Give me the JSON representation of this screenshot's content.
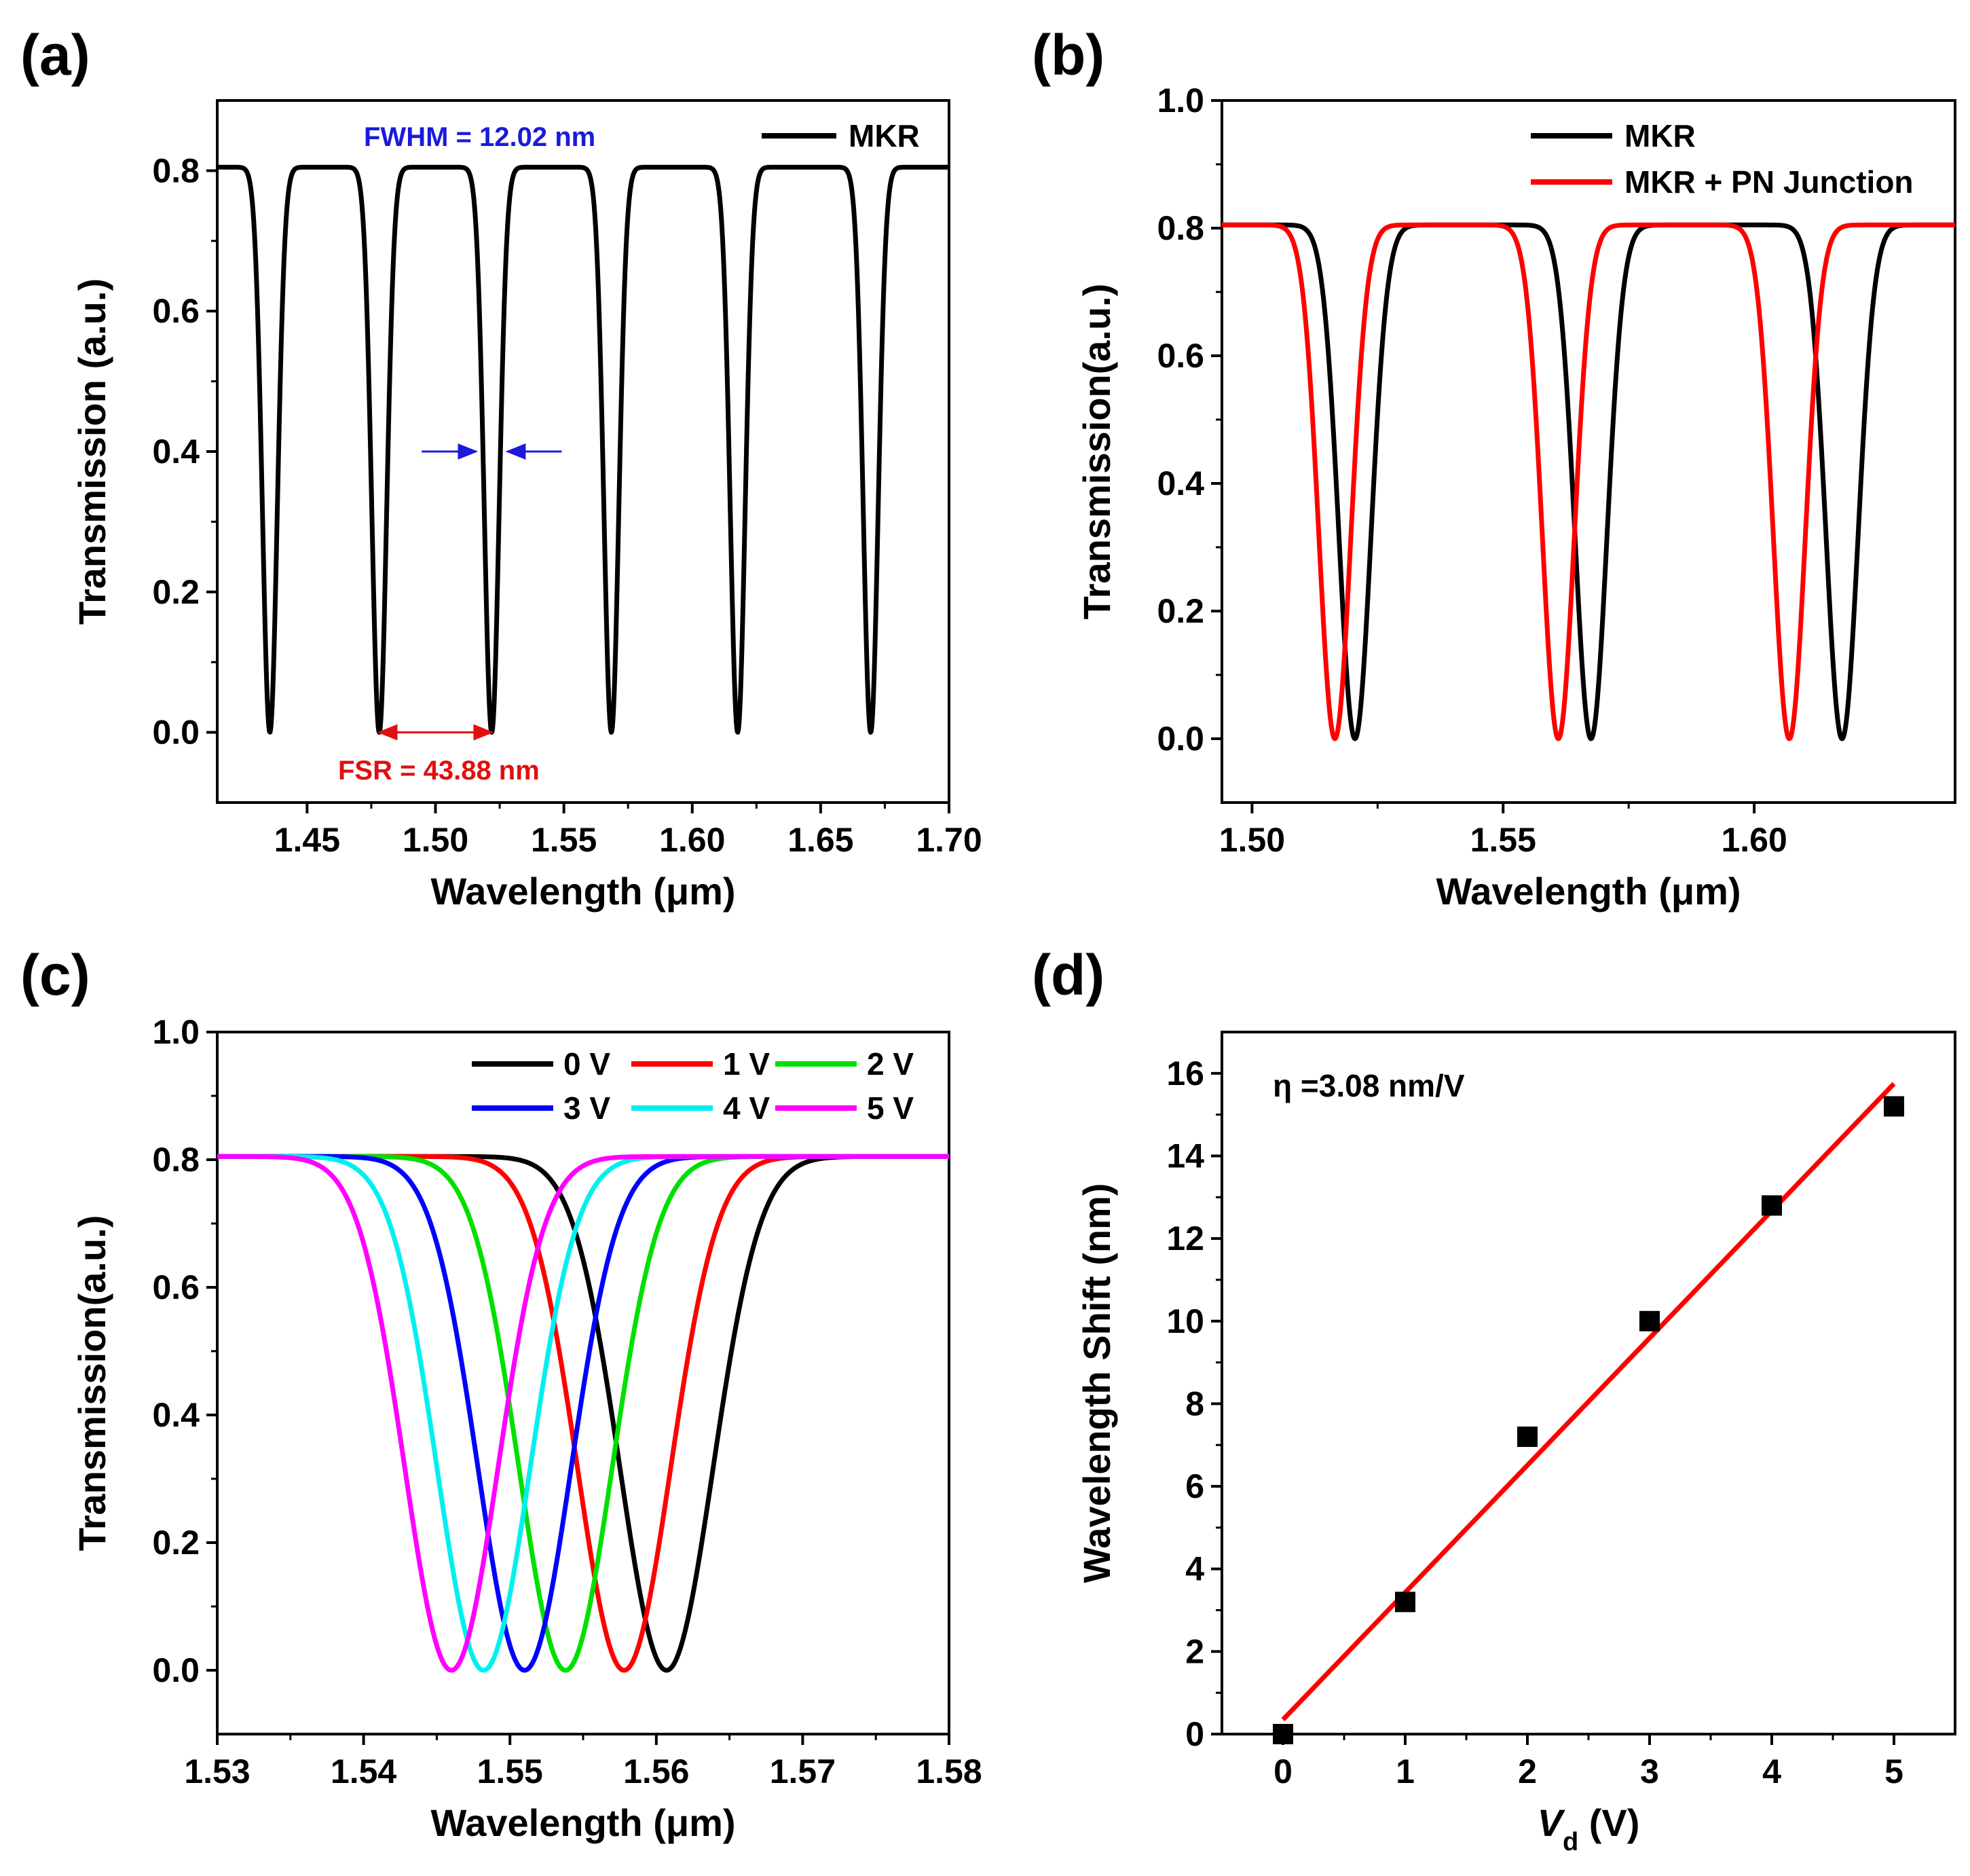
{
  "chart_data": [
    {
      "id": "a",
      "panel_label": "(a)",
      "type": "line",
      "xlabel": "Wavelength (μm)",
      "ylabel": "Transmission (a.u.)",
      "xlim": [
        1.415,
        1.7
      ],
      "ylim": [
        -0.1,
        0.9
      ],
      "xticks": [
        "1.45",
        "1.50",
        "1.55",
        "1.60",
        "1.65",
        "1.70"
      ],
      "yticks": [
        "0.0",
        "0.2",
        "0.4",
        "0.6",
        "0.8"
      ],
      "legend_position": "top-right",
      "series": [
        {
          "name": "MKR",
          "color": "#000000",
          "peak": 0.805,
          "dips": [
            1.4355,
            1.4781,
            1.5219,
            1.5685,
            1.6177,
            1.6695
          ],
          "dip_half_width": 0.0041
        }
      ],
      "annotations": {
        "fwhm_text": "FWHM = 12.02 nm",
        "fwhm_color": "#1a1adb",
        "fwhm_arrow_y": 0.4,
        "fwhm_arrow_x": [
          1.5158,
          1.528
        ],
        "fsr_text": "FSR = 43.88 nm",
        "fsr_color": "#e01010",
        "fsr_arrow_y": 0.0,
        "fsr_arrow_x": [
          1.4781,
          1.5219
        ]
      }
    },
    {
      "id": "b",
      "panel_label": "(b)",
      "type": "line",
      "xlabel": "Wavelength (μm)",
      "ylabel": "Transmission(a.u.)",
      "xlim": [
        1.494,
        1.64
      ],
      "ylim": [
        -0.1,
        1.0
      ],
      "xticks": [
        "1.50",
        "1.55",
        "1.60"
      ],
      "yticks": [
        "0.0",
        "0.2",
        "0.4",
        "0.6",
        "0.8",
        "1.0"
      ],
      "legend_position": "top-right",
      "series": [
        {
          "name": "MKR",
          "color": "#000000",
          "peak": 0.805,
          "dips": [
            1.5205,
            1.5675,
            1.6175
          ],
          "dip_half_width": 0.0045
        },
        {
          "name": "MKR + PN Junction",
          "color": "#ff0000",
          "peak": 0.805,
          "dips": [
            1.5165,
            1.561,
            1.607
          ],
          "dip_half_width": 0.0045
        }
      ]
    },
    {
      "id": "c",
      "panel_label": "(c)",
      "type": "line",
      "xlabel": "Wavelength (μm)",
      "ylabel": "Transmission(a.u.)",
      "xlim": [
        1.53,
        1.58
      ],
      "ylim": [
        -0.1,
        1.0
      ],
      "xticks": [
        "1.53",
        "1.54",
        "1.55",
        "1.56",
        "1.57",
        "1.58"
      ],
      "yticks": [
        "0.0",
        "0.2",
        "0.4",
        "0.6",
        "0.8",
        "1.0"
      ],
      "legend_position": "top-right",
      "series": [
        {
          "name": "0 V",
          "color": "#000000",
          "peak": 0.805,
          "dips": [
            1.5607
          ],
          "dip_half_width": 0.0045
        },
        {
          "name": "1 V",
          "color": "#ff0000",
          "peak": 0.805,
          "dips": [
            1.5578
          ],
          "dip_half_width": 0.0045
        },
        {
          "name": "2 V",
          "color": "#00e000",
          "peak": 0.805,
          "dips": [
            1.5538
          ],
          "dip_half_width": 0.0045
        },
        {
          "name": "3 V",
          "color": "#0000ff",
          "peak": 0.805,
          "dips": [
            1.551
          ],
          "dip_half_width": 0.0045
        },
        {
          "name": "4 V",
          "color": "#00f0f0",
          "peak": 0.805,
          "dips": [
            1.5482
          ],
          "dip_half_width": 0.0045
        },
        {
          "name": "5 V",
          "color": "#ff00ff",
          "peak": 0.805,
          "dips": [
            1.546
          ],
          "dip_half_width": 0.0045
        }
      ]
    },
    {
      "id": "d",
      "panel_label": "(d)",
      "type": "scatter",
      "xlabel": "V",
      "xlabel_sub": "d",
      "xlabel_suffix": " (V)",
      "ylabel": "Wavelength Shift (nm)",
      "xlim": [
        -0.5,
        5.5
      ],
      "ylim": [
        0,
        17
      ],
      "xticks": [
        "0",
        "1",
        "2",
        "3",
        "4",
        "5"
      ],
      "yticks": [
        "0",
        "2",
        "4",
        "6",
        "8",
        "10",
        "12",
        "14",
        "16"
      ],
      "points": {
        "x": [
          0,
          1,
          2,
          3,
          4,
          5
        ],
        "y": [
          0,
          3.2,
          7.2,
          10.0,
          12.8,
          15.2
        ],
        "color": "#000000"
      },
      "fit": {
        "slope": 3.08,
        "intercept": 0.35,
        "x_range": [
          0,
          5
        ],
        "color": "#ff0000"
      },
      "annotation": "η =3.08 nm/V"
    }
  ]
}
